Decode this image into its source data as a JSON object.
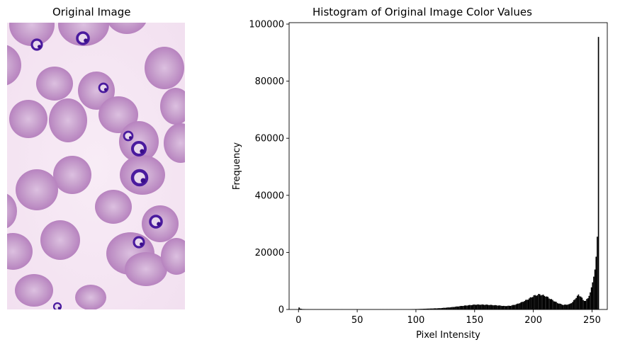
{
  "figure": {
    "left_title": "Original Image",
    "right_title": "Histogram of Original Image Color Values"
  },
  "image_panel": {
    "content": "blood-smear-micrograph",
    "background_color": "#f6e8f4",
    "cell_color": "#c291c8",
    "parasite_color": "#4a1a9e"
  },
  "chart_data": {
    "type": "bar",
    "title": "Histogram of Original Image Color Values",
    "xlabel": "Pixel Intensity",
    "ylabel": "Frequency",
    "xlim": [
      -8,
      263
    ],
    "ylim": [
      0,
      100000
    ],
    "xticks": [
      0,
      50,
      100,
      150,
      200,
      250
    ],
    "yticks": [
      0,
      20000,
      40000,
      60000,
      80000,
      100000
    ],
    "bar_color": "#000000",
    "anchors": [
      [
        0,
        700
      ],
      [
        1,
        300
      ],
      [
        3,
        150
      ],
      [
        10,
        80
      ],
      [
        50,
        40
      ],
      [
        80,
        60
      ],
      [
        100,
        150
      ],
      [
        110,
        300
      ],
      [
        120,
        450
      ],
      [
        130,
        800
      ],
      [
        140,
        1300
      ],
      [
        150,
        1700
      ],
      [
        155,
        1700
      ],
      [
        160,
        1650
      ],
      [
        170,
        1400
      ],
      [
        175,
        1200
      ],
      [
        180,
        1300
      ],
      [
        185,
        1800
      ],
      [
        190,
        2600
      ],
      [
        195,
        3600
      ],
      [
        200,
        4800
      ],
      [
        205,
        5300
      ],
      [
        210,
        4700
      ],
      [
        215,
        3500
      ],
      [
        220,
        2300
      ],
      [
        225,
        1600
      ],
      [
        230,
        1800
      ],
      [
        233,
        2600
      ],
      [
        236,
        4200
      ],
      [
        238,
        5100
      ],
      [
        240,
        4600
      ],
      [
        242,
        3300
      ],
      [
        244,
        3000
      ],
      [
        246,
        4000
      ],
      [
        248,
        6000
      ],
      [
        250,
        9500
      ],
      [
        251,
        11500
      ],
      [
        252,
        14000
      ],
      [
        253,
        18500
      ],
      [
        254,
        25500
      ],
      [
        255,
        95500
      ]
    ]
  }
}
